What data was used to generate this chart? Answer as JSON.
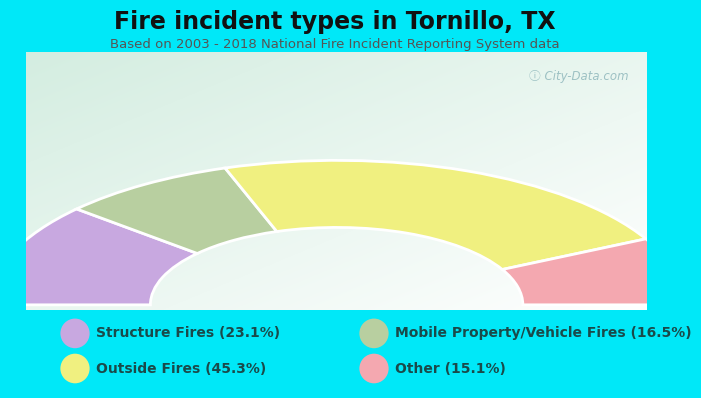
{
  "title": "Fire incident types in Tornillo, TX",
  "subtitle": "Based on 2003 - 2018 National Fire Incident Reporting System data",
  "watermark": "ⓘ City-Data.com",
  "background_outer": "#00e8f8",
  "slices": [
    {
      "label": "Structure Fires (23.1%)",
      "value": 23.1,
      "color": "#c8a8e0"
    },
    {
      "label": "Mobile Property/Vehicle Fires (16.5%)",
      "value": 16.5,
      "color": "#b8cfa0"
    },
    {
      "label": "Outside Fires (45.3%)",
      "value": 45.3,
      "color": "#f0f080"
    },
    {
      "label": "Other (15.1%)",
      "value": 15.1,
      "color": "#f4a8b0"
    }
  ],
  "legend_left": [
    {
      "label": "Structure Fires (23.1%)",
      "color": "#c8a8e0"
    },
    {
      "label": "Outside Fires (45.3%)",
      "color": "#f0f080"
    }
  ],
  "legend_right": [
    {
      "label": "Mobile Property/Vehicle Fires (16.5%)",
      "color": "#b8cfa0"
    },
    {
      "label": "Other (15.1%)",
      "color": "#f4a8b0"
    }
  ],
  "title_fontsize": 17,
  "subtitle_fontsize": 9.5,
  "legend_fontsize": 10,
  "title_color": "#111111",
  "subtitle_color": "#555555",
  "legend_text_color": "#1a4a4a"
}
